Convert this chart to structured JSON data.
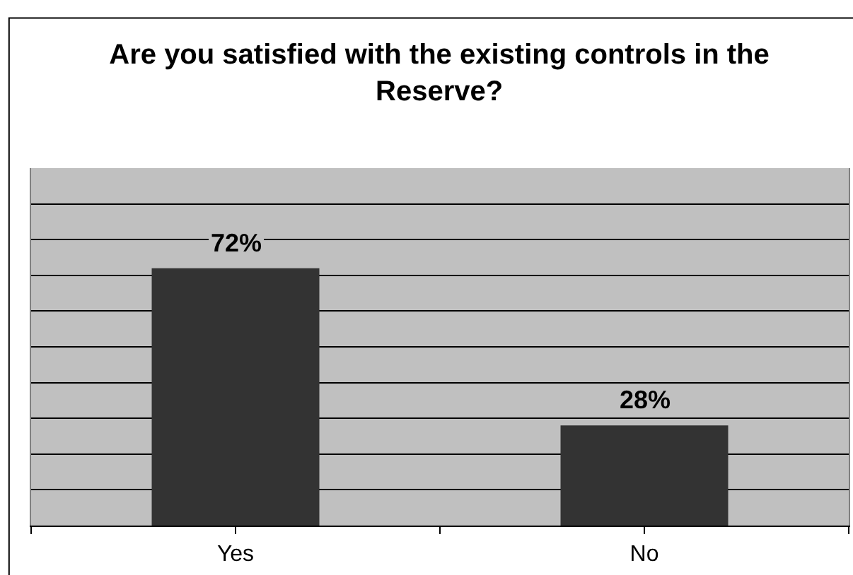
{
  "chart_data": {
    "type": "bar",
    "title": "Are you satisfied with the existing controls in the Reserve?",
    "categories": [
      "Yes",
      "No"
    ],
    "values": [
      72,
      28
    ],
    "color": "#333333",
    "value_labels": [
      "72%",
      "28%"
    ],
    "ylim": [
      0,
      100
    ],
    "yticks": [
      {
        "value": 0,
        "label": null
      },
      {
        "value": 10,
        "label": null
      },
      {
        "value": 20,
        "label": null
      },
      {
        "value": 30,
        "label": null
      },
      {
        "value": 40,
        "label": null
      },
      {
        "value": 50,
        "label": null
      },
      {
        "value": 60,
        "label": null
      },
      {
        "value": 70,
        "label": null
      },
      {
        "value": 80,
        "label": null
      },
      {
        "value": 90,
        "label": null
      },
      {
        "value": 100,
        "label": null
      }
    ],
    "tick_labels": "x",
    "grid": "y"
  }
}
